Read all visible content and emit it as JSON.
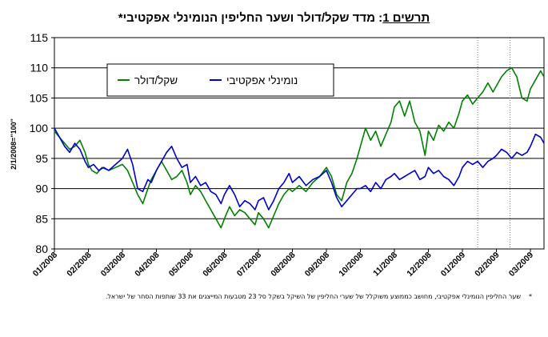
{
  "chart_data": {
    "type": "line",
    "title_label": "תרשים 1",
    "title_text": ": מדד שקל/דולר ושער החליפין הנומינלי אפקטיבי*",
    "ylabel": "2/1/2008=\"100\"",
    "ylim": [
      80,
      115
    ],
    "yticks": [
      "80",
      "85",
      "90",
      "95",
      "100",
      "105",
      "110",
      "115"
    ],
    "xticks": [
      "01/2008",
      "02/2008",
      "03/2008",
      "04/2008",
      "05/2008",
      "06/2008",
      "07/2008",
      "08/2008",
      "09/2008",
      "10/2008",
      "11/2008",
      "12/2008",
      "01/2009",
      "02/2009",
      "03/2009"
    ],
    "x_range": [
      0,
      14.4
    ],
    "grid": "horizontal",
    "legend_position": "top-left",
    "series": [
      {
        "name": "שקל/דולר",
        "color": "#008000",
        "x": [
          0,
          0.15,
          0.3,
          0.45,
          0.6,
          0.75,
          0.9,
          1.0,
          1.1,
          1.25,
          1.4,
          1.6,
          1.8,
          2.0,
          2.15,
          2.3,
          2.45,
          2.6,
          2.75,
          2.85,
          3.0,
          3.15,
          3.3,
          3.45,
          3.6,
          3.75,
          3.9,
          4.0,
          4.15,
          4.3,
          4.45,
          4.6,
          4.75,
          4.9,
          5.0,
          5.15,
          5.3,
          5.45,
          5.6,
          5.75,
          5.9,
          6.0,
          6.15,
          6.3,
          6.45,
          6.6,
          6.75,
          6.9,
          7.0,
          7.2,
          7.4,
          7.6,
          7.8,
          8.0,
          8.15,
          8.3,
          8.45,
          8.6,
          8.75,
          8.9,
          9.0,
          9.15,
          9.3,
          9.45,
          9.6,
          9.75,
          9.9,
          10.0,
          10.15,
          10.3,
          10.45,
          10.6,
          10.75,
          10.9,
          11.0,
          11.15,
          11.3,
          11.45,
          11.6,
          11.75,
          11.9,
          12.0,
          12.15,
          12.3,
          12.45,
          12.6,
          12.75,
          12.9,
          13.0,
          13.15,
          13.3,
          13.45,
          13.6,
          13.75,
          13.9,
          14.0,
          14.15,
          14.3,
          14.4
        ],
        "y": [
          99.5,
          98.5,
          97.5,
          96.5,
          97.0,
          98.0,
          96.0,
          94.0,
          93.0,
          92.5,
          93.5,
          93.0,
          93.5,
          94.0,
          93.0,
          91.0,
          89.0,
          87.5,
          90.0,
          91.5,
          93.0,
          94.5,
          93.0,
          91.5,
          92.0,
          93.0,
          91.0,
          89.0,
          90.5,
          89.5,
          88.0,
          86.5,
          85.0,
          83.5,
          85.0,
          87.0,
          85.5,
          86.5,
          86.0,
          85.0,
          84.0,
          86.0,
          85.0,
          83.5,
          85.5,
          87.5,
          89.0,
          90.0,
          89.5,
          90.5,
          89.5,
          91.0,
          92.0,
          93.5,
          92.0,
          89.0,
          88.0,
          91.0,
          92.5,
          95.0,
          97.0,
          100.0,
          98.0,
          99.5,
          97.0,
          99.0,
          101.0,
          103.5,
          104.5,
          102.0,
          104.5,
          101.0,
          99.5,
          95.5,
          99.5,
          98.0,
          100.5,
          99.5,
          101.0,
          100.0,
          102.5,
          104.5,
          105.5,
          104.0,
          105.0,
          106.0,
          107.5,
          106.0,
          107.0,
          108.5,
          109.5,
          110.0,
          108.5,
          105.0,
          104.5,
          106.5,
          108.0,
          109.5,
          108.5
        ]
      },
      {
        "name": "נומינלי אפקטיבי",
        "color": "#0000CC",
        "x": [
          0,
          0.15,
          0.3,
          0.45,
          0.6,
          0.75,
          0.9,
          1.0,
          1.15,
          1.3,
          1.45,
          1.6,
          1.8,
          2.0,
          2.15,
          2.3,
          2.45,
          2.6,
          2.75,
          2.85,
          3.0,
          3.15,
          3.3,
          3.45,
          3.6,
          3.75,
          3.9,
          4.0,
          4.15,
          4.3,
          4.45,
          4.6,
          4.75,
          4.9,
          5.0,
          5.15,
          5.3,
          5.45,
          5.6,
          5.75,
          5.9,
          6.0,
          6.15,
          6.3,
          6.45,
          6.6,
          6.75,
          6.9,
          7.0,
          7.2,
          7.4,
          7.6,
          7.8,
          8.0,
          8.15,
          8.3,
          8.45,
          8.6,
          8.75,
          8.9,
          9.0,
          9.15,
          9.3,
          9.45,
          9.6,
          9.75,
          9.9,
          10.0,
          10.15,
          10.3,
          10.45,
          10.6,
          10.75,
          10.9,
          11.0,
          11.15,
          11.3,
          11.45,
          11.6,
          11.75,
          11.9,
          12.0,
          12.15,
          12.3,
          12.45,
          12.6,
          12.75,
          12.9,
          13.0,
          13.15,
          13.3,
          13.45,
          13.6,
          13.75,
          13.9,
          14.0,
          14.15,
          14.3,
          14.4
        ],
        "y": [
          100.0,
          98.5,
          97.0,
          96.0,
          97.5,
          96.5,
          94.5,
          93.5,
          94.0,
          93.0,
          93.5,
          93.0,
          94.0,
          95.0,
          96.5,
          94.0,
          90.0,
          89.5,
          91.5,
          91.0,
          93.0,
          94.5,
          96.0,
          97.0,
          95.0,
          93.5,
          94.0,
          91.0,
          92.0,
          90.5,
          91.0,
          89.5,
          89.0,
          87.5,
          89.0,
          90.5,
          89.0,
          87.0,
          88.0,
          87.5,
          86.5,
          88.0,
          88.5,
          86.5,
          88.0,
          90.0,
          91.0,
          92.5,
          91.0,
          92.0,
          90.5,
          91.5,
          92.0,
          93.0,
          91.0,
          88.5,
          87.0,
          88.0,
          89.0,
          90.0,
          90.0,
          90.5,
          89.5,
          91.0,
          90.0,
          91.5,
          92.0,
          92.5,
          91.5,
          92.0,
          92.5,
          93.0,
          91.5,
          92.0,
          93.5,
          92.5,
          93.0,
          92.0,
          91.5,
          90.5,
          92.0,
          93.5,
          94.5,
          94.0,
          94.5,
          93.5,
          94.5,
          95.0,
          95.5,
          96.5,
          96.0,
          95.0,
          96.0,
          95.5,
          96.0,
          97.0,
          99.0,
          98.5,
          97.5
        ]
      }
    ],
    "vlines_x": [
      12.45,
      13.4
    ],
    "footnote_mark": "*",
    "footnote_text": "שער החליפין הנומינלי אפקטיבי, מחושב כממוצע משוקלל של שערי החליפין של השיקל בשקל סל 23 מטבעות המייצגים את 33 שותפות הסחר של ישראל."
  }
}
